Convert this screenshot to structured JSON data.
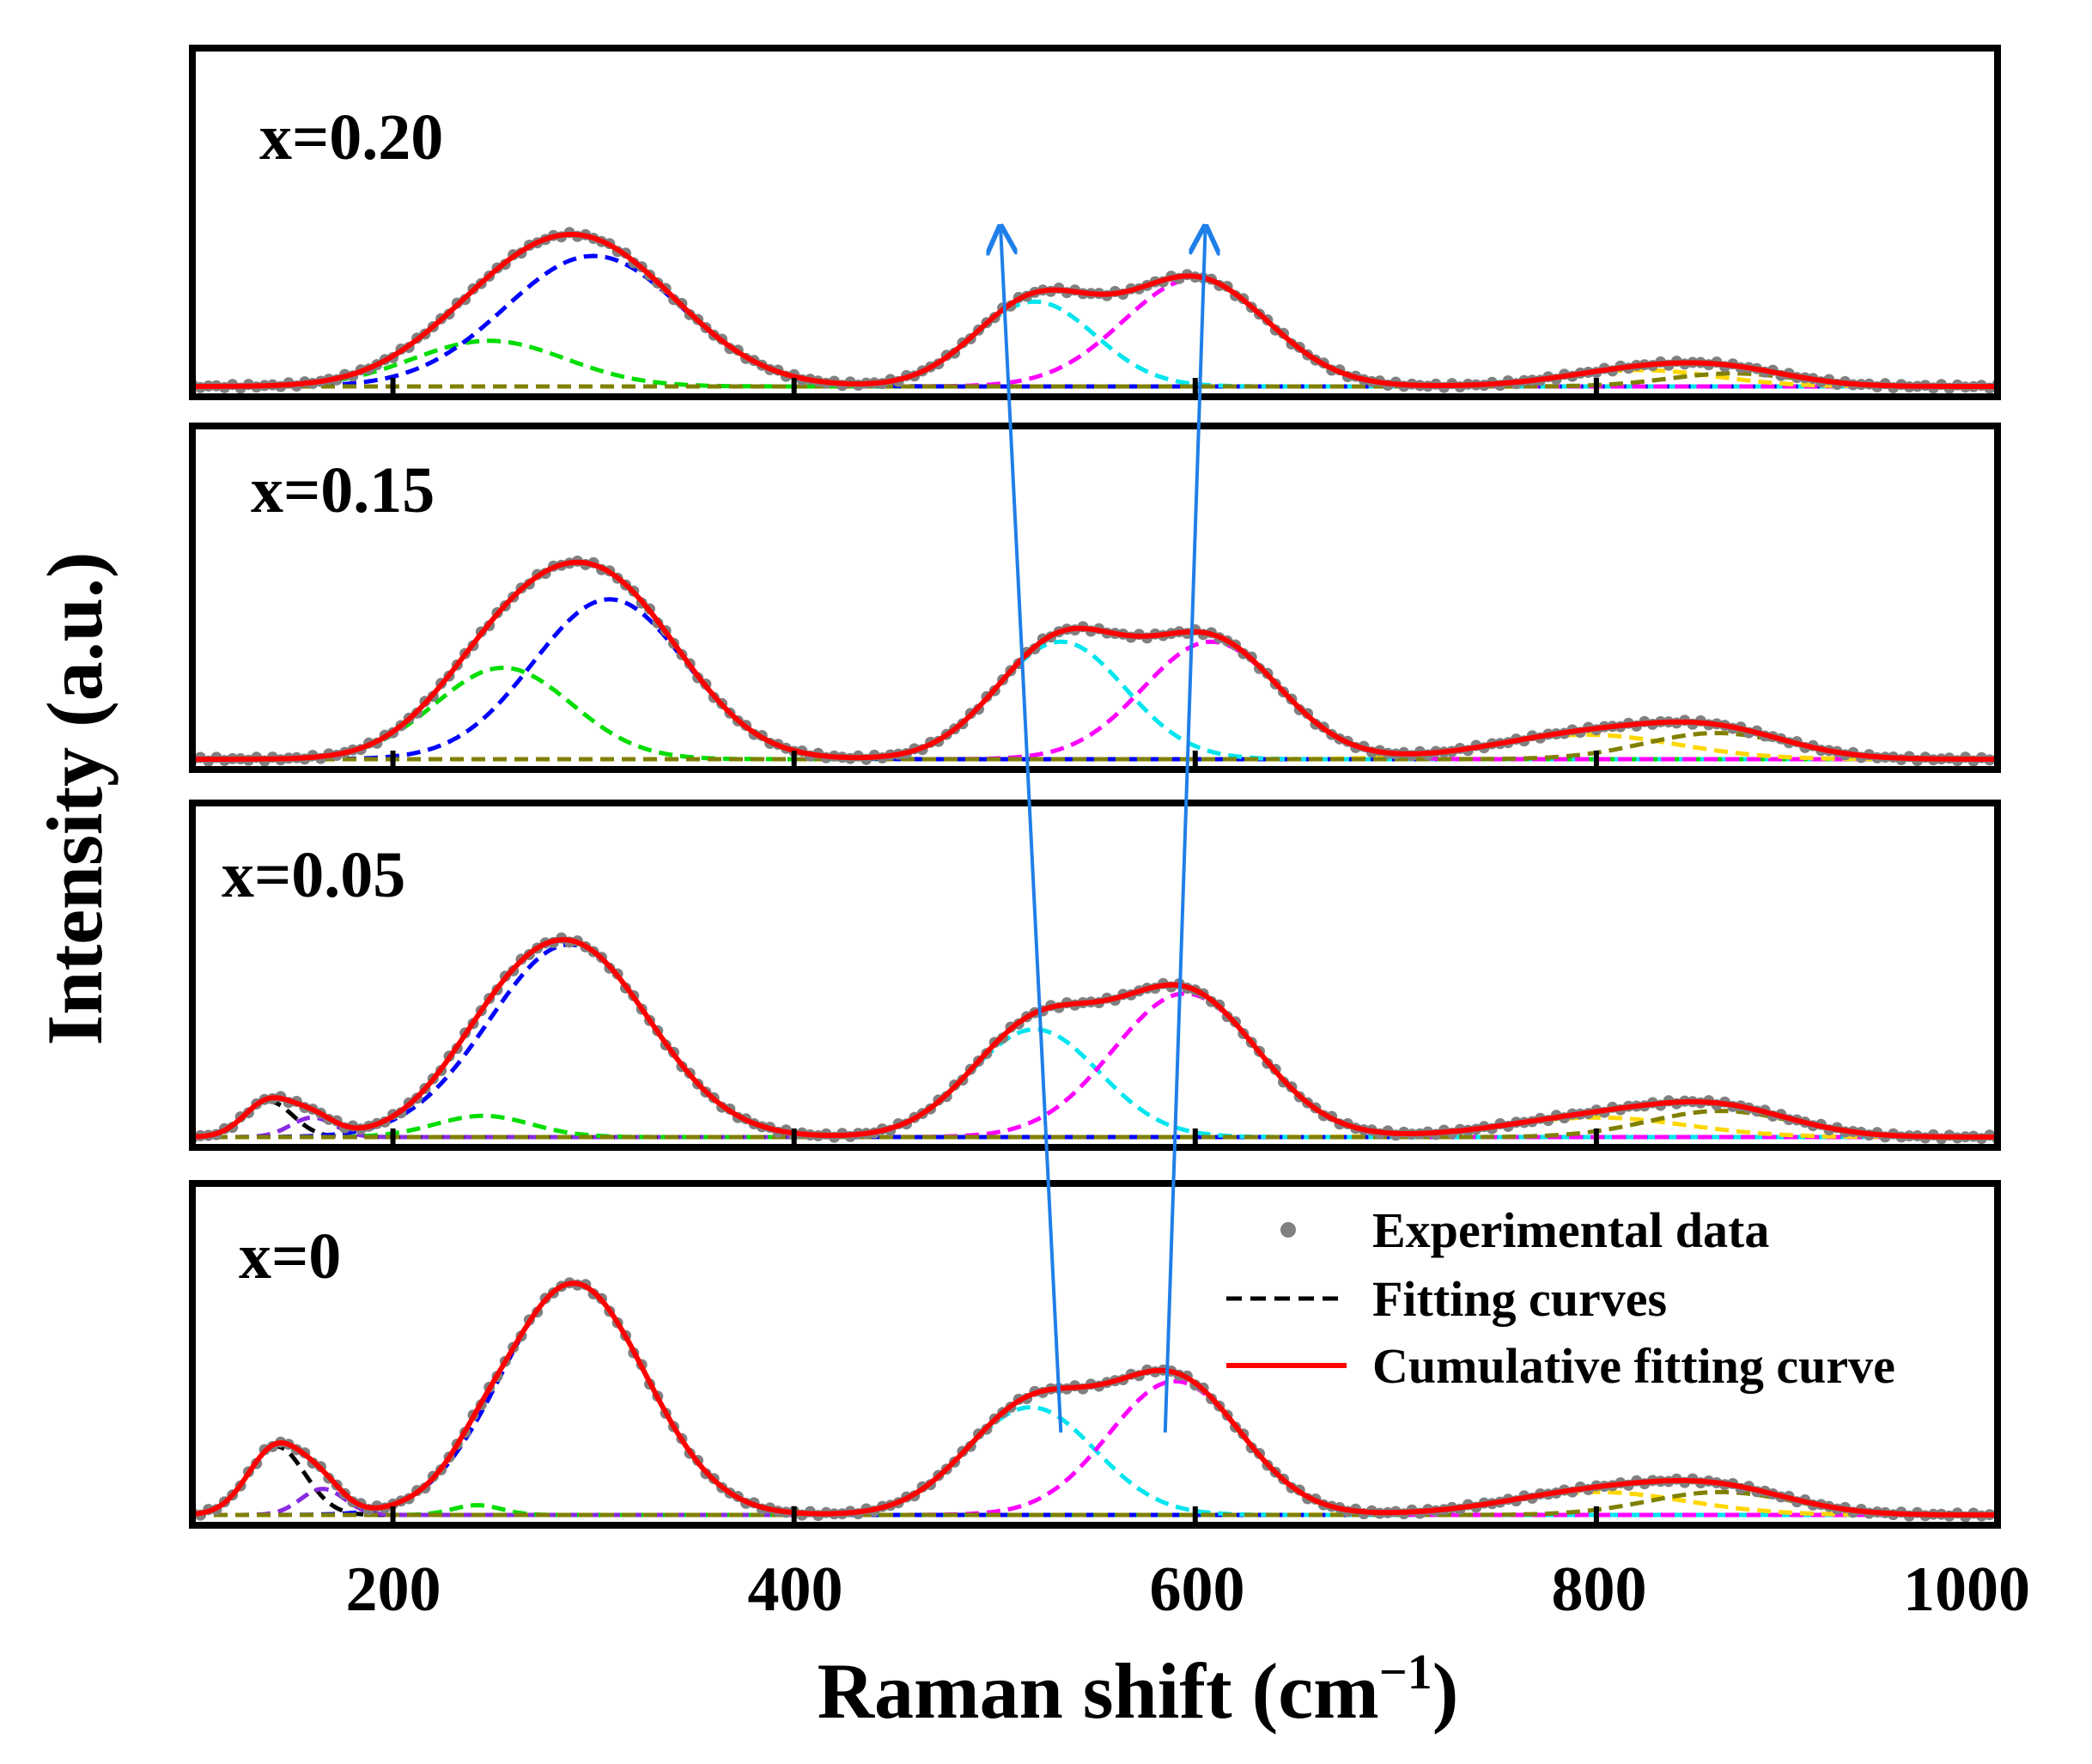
{
  "chart_data": {
    "type": "line",
    "title": "",
    "xlabel": "Raman shift (cm",
    "xlabel_sup": "−1",
    "xlabel_tail": ")",
    "ylabel": "Intensity (a.u.)",
    "xlim": [
      100,
      1000
    ],
    "xticks": [
      200,
      400,
      600,
      800,
      1000
    ],
    "xtick_labels": [
      "200",
      "400",
      "600",
      "800",
      "1000"
    ],
    "legend": {
      "position": "bottom-right",
      "entries": [
        {
          "label": "Experimental data",
          "style": "points",
          "color": "#808080"
        },
        {
          "label": "Fitting curves",
          "style": "dashed",
          "color": "#000000"
        },
        {
          "label": "Cumulative fitting curve",
          "style": "solid",
          "color": "#ff0000"
        }
      ]
    },
    "component_colors": {
      "A": "#000000",
      "B": "#8a2be2",
      "C": "#00dd00",
      "D": "#0000ff",
      "E": "#00e5ee",
      "F": "#ff00ff",
      "G": "#ffd700",
      "H": "#808000"
    },
    "colors": {
      "experimental": "#808080",
      "cumulative": "#ff0000",
      "arrows": "#1f7fe8"
    },
    "panels": [
      {
        "label": "x=0.20",
        "components": [
          {
            "id": "C",
            "center": 248,
            "amplitude": 0.28,
            "width": 38
          },
          {
            "id": "D",
            "center": 300,
            "amplitude": 0.8,
            "width": 44
          },
          {
            "id": "E",
            "center": 520,
            "amplitude": 0.52,
            "width": 30
          },
          {
            "id": "F",
            "center": 600,
            "amplitude": 0.66,
            "width": 36
          },
          {
            "id": "G",
            "center": 822,
            "amplitude": 0.1,
            "width": 38
          },
          {
            "id": "H",
            "center": 868,
            "amplitude": 0.08,
            "width": 32
          }
        ]
      },
      {
        "label": "x=0.15",
        "components": [
          {
            "id": "C",
            "center": 255,
            "amplitude": 0.56,
            "width": 34
          },
          {
            "id": "D",
            "center": 308,
            "amplitude": 0.98,
            "width": 38
          },
          {
            "id": "E",
            "center": 533,
            "amplitude": 0.72,
            "width": 32
          },
          {
            "id": "F",
            "center": 608,
            "amplitude": 0.72,
            "width": 34
          },
          {
            "id": "G",
            "center": 795,
            "amplitude": 0.15,
            "width": 45
          },
          {
            "id": "H",
            "center": 860,
            "amplitude": 0.16,
            "width": 36
          }
        ]
      },
      {
        "label": "x=0.05",
        "components": [
          {
            "id": "A",
            "center": 138,
            "amplitude": 0.22,
            "width": 12
          },
          {
            "id": "B",
            "center": 160,
            "amplitude": 0.12,
            "width": 11
          },
          {
            "id": "C",
            "center": 245,
            "amplitude": 0.13,
            "width": 24
          },
          {
            "id": "D",
            "center": 288,
            "amplitude": 1.18,
            "width": 40
          },
          {
            "id": "E",
            "center": 520,
            "amplitude": 0.66,
            "width": 32
          },
          {
            "id": "F",
            "center": 595,
            "amplitude": 0.88,
            "width": 36
          },
          {
            "id": "G",
            "center": 800,
            "amplitude": 0.12,
            "width": 45
          },
          {
            "id": "H",
            "center": 862,
            "amplitude": 0.16,
            "width": 36
          }
        ]
      },
      {
        "label": "x=0",
        "components": [
          {
            "id": "A",
            "center": 142,
            "amplitude": 0.42,
            "width": 14
          },
          {
            "id": "B",
            "center": 165,
            "amplitude": 0.16,
            "width": 11
          },
          {
            "id": "C",
            "center": 242,
            "amplitude": 0.06,
            "width": 12
          },
          {
            "id": "D",
            "center": 290,
            "amplitude": 1.42,
            "width": 36
          },
          {
            "id": "E",
            "center": 518,
            "amplitude": 0.66,
            "width": 32
          },
          {
            "id": "F",
            "center": 590,
            "amplitude": 0.82,
            "width": 33
          },
          {
            "id": "G",
            "center": 800,
            "amplitude": 0.14,
            "width": 45
          },
          {
            "id": "H",
            "center": 862,
            "amplitude": 0.14,
            "width": 36
          }
        ]
      }
    ],
    "annotations": [
      {
        "type": "arrow",
        "from": {
          "panel": "x=0",
          "x": 533
        },
        "to": {
          "panel": "x=0.20",
          "x": 503
        }
      },
      {
        "type": "arrow",
        "from": {
          "panel": "x=0",
          "x": 585
        },
        "to": {
          "panel": "x=0.20",
          "x": 605
        }
      }
    ]
  }
}
